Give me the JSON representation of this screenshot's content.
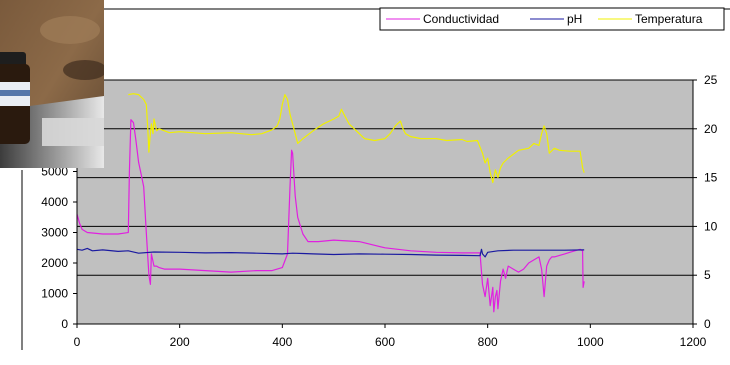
{
  "chart_data": {
    "type": "line",
    "title": "",
    "xlabel": "",
    "ylabel": "",
    "xlim": [
      0,
      1200
    ],
    "ylim_left": [
      0,
      8000
    ],
    "ylim_right": [
      0,
      25
    ],
    "x_ticks": [
      0,
      200,
      400,
      600,
      800,
      1000,
      1200
    ],
    "y_left_ticks": [
      0,
      1000,
      2000,
      3000,
      4000,
      5000
    ],
    "y_right_ticks": [
      0,
      5,
      10,
      15,
      20,
      25
    ],
    "grid": "horizontal",
    "legend": {
      "placement": "top-right",
      "entries": [
        {
          "name": "Conductividad",
          "color": "#e020e0"
        },
        {
          "name": "pH",
          "color": "#1a1aa0"
        },
        {
          "name": "Temperatura",
          "color": "#f0f000"
        }
      ]
    },
    "plot_background": "#c0c0c0",
    "series": [
      {
        "name": "Conductividad",
        "axis": "left",
        "color": "#e020e0",
        "x": [
          0,
          5,
          10,
          20,
          50,
          80,
          100,
          102,
          105,
          110,
          115,
          120,
          125,
          130,
          135,
          140,
          143,
          145,
          150,
          155,
          160,
          170,
          200,
          250,
          300,
          350,
          380,
          400,
          410,
          415,
          418,
          420,
          425,
          430,
          440,
          450,
          470,
          500,
          550,
          600,
          650,
          700,
          750,
          785,
          788,
          790,
          795,
          800,
          805,
          810,
          812,
          815,
          818,
          820,
          825,
          830,
          835,
          840,
          850,
          860,
          870,
          880,
          890,
          900,
          905,
          910,
          915,
          920,
          925,
          930,
          940,
          950,
          960,
          970,
          980,
          985,
          986,
          988
        ],
        "y": [
          3600,
          3300,
          3100,
          3000,
          2950,
          2950,
          3000,
          5000,
          6700,
          6600,
          6000,
          5300,
          4900,
          4500,
          3000,
          1600,
          1300,
          2300,
          1900,
          1900,
          1850,
          1800,
          1800,
          1750,
          1700,
          1750,
          1750,
          1850,
          2300,
          4500,
          5700,
          5600,
          4200,
          3500,
          2950,
          2700,
          2700,
          2750,
          2700,
          2500,
          2400,
          2350,
          2330,
          2330,
          1700,
          1300,
          900,
          1500,
          600,
          1200,
          400,
          900,
          1100,
          500,
          1400,
          1800,
          1500,
          1900,
          1800,
          1700,
          1800,
          2000,
          2100,
          2200,
          1800,
          900,
          1900,
          2100,
          2200,
          2200,
          2250,
          2300,
          2350,
          2400,
          2450,
          2400,
          1200,
          1400
        ]
      },
      {
        "name": "pH",
        "axis": "left",
        "color": "#1a1aa0",
        "x": [
          0,
          10,
          20,
          30,
          50,
          80,
          100,
          120,
          150,
          200,
          250,
          300,
          350,
          400,
          420,
          440,
          460,
          500,
          550,
          600,
          650,
          700,
          750,
          785,
          788,
          790,
          795,
          800,
          820,
          850,
          900,
          950,
          988
        ],
        "y": [
          2450,
          2420,
          2480,
          2400,
          2430,
          2380,
          2400,
          2320,
          2360,
          2350,
          2330,
          2340,
          2320,
          2300,
          2320,
          2310,
          2300,
          2280,
          2300,
          2290,
          2280,
          2260,
          2250,
          2240,
          2450,
          2300,
          2200,
          2350,
          2400,
          2420,
          2420,
          2420,
          2430
        ]
      },
      {
        "name": "Temperatura",
        "axis": "right",
        "color": "#f0f000",
        "x": [
          100,
          110,
          120,
          130,
          135,
          138,
          140,
          142,
          145,
          148,
          150,
          155,
          160,
          180,
          200,
          250,
          300,
          340,
          360,
          380,
          390,
          395,
          400,
          405,
          410,
          415,
          420,
          425,
          430,
          440,
          460,
          480,
          500,
          510,
          515,
          520,
          530,
          540,
          560,
          580,
          600,
          610,
          620,
          630,
          635,
          640,
          650,
          670,
          700,
          720,
          750,
          760,
          780,
          790,
          795,
          800,
          805,
          810,
          815,
          820,
          825,
          830,
          840,
          860,
          880,
          890,
          900,
          905,
          910,
          915,
          920,
          930,
          940,
          960,
          980,
          985,
          988
        ],
        "y": [
          23.5,
          23.6,
          23.5,
          23.0,
          22.5,
          20.0,
          17.6,
          19.0,
          20.5,
          19.5,
          21.0,
          19.8,
          20.0,
          19.6,
          19.7,
          19.5,
          19.6,
          19.4,
          19.5,
          19.9,
          20.3,
          21.0,
          22.5,
          23.5,
          23.0,
          21.5,
          20.5,
          19.5,
          18.5,
          19.0,
          19.8,
          20.5,
          21.0,
          21.3,
          22.0,
          21.5,
          20.5,
          20.0,
          19.0,
          18.8,
          19.0,
          19.5,
          20.3,
          20.8,
          20.0,
          19.5,
          19.2,
          19.0,
          19.0,
          18.8,
          18.9,
          18.7,
          18.8,
          17.5,
          16.5,
          17.0,
          15.5,
          14.5,
          15.8,
          15.0,
          16.0,
          16.5,
          17.0,
          17.8,
          18.0,
          18.5,
          18.3,
          19.5,
          20.3,
          19.5,
          17.5,
          18.0,
          17.8,
          17.7,
          17.7,
          16.0,
          15.5
        ]
      }
    ]
  }
}
